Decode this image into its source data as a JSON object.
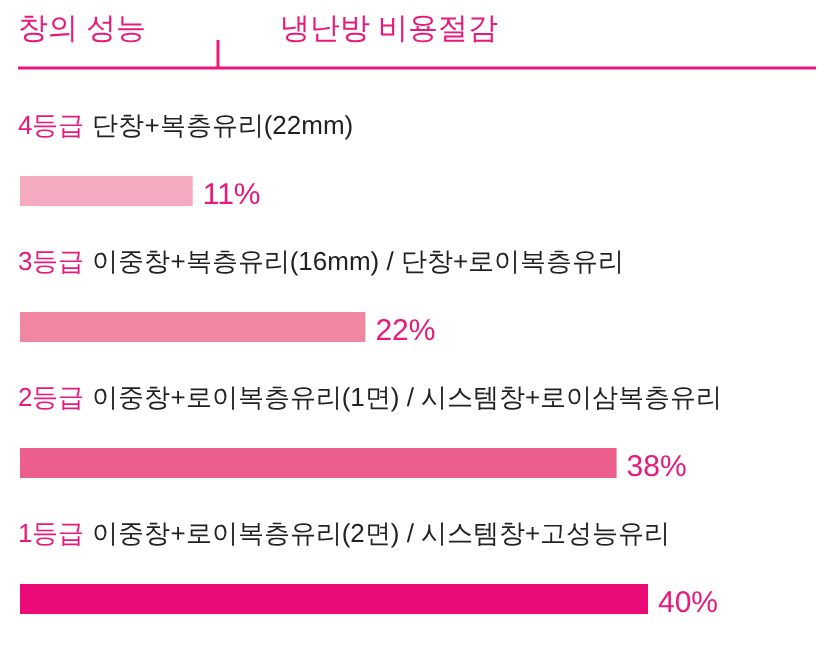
{
  "chart_data": {
    "type": "bar",
    "orientation": "horizontal",
    "title": "창의 성능",
    "subtitle": "냉난방 비용절감",
    "categories": [
      "4등급 단창+복층유리(22mm)",
      "3등급 이중창+복층유리(16mm) / 단창+로이복층유리",
      "2등급 이중창+로이복층유리(1면) / 시스템창+로이삼복층유리",
      "1등급 이중창+로이복층유리(2면) / 시스템창+고성능유리"
    ],
    "values": [
      11,
      22,
      38,
      40
    ],
    "value_labels": [
      "11%",
      "22%",
      "38%",
      "40%"
    ],
    "colors": [
      "#f4abc0",
      "#f0869f",
      "#ec5f8c",
      "#ea0a78"
    ]
  }
}
